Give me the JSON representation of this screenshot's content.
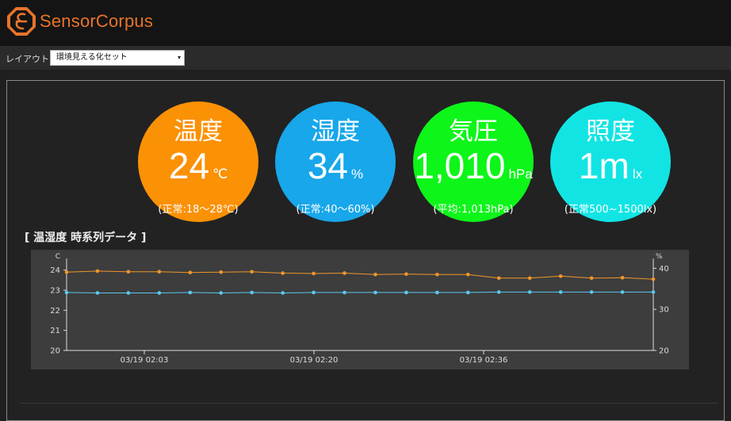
{
  "app": {
    "title": "SensorCorpus",
    "logo_icon": "sensorcorpus-logo-icon"
  },
  "layout": {
    "label": "レイアウト",
    "selected": "環境見える化セット",
    "caret": "▾"
  },
  "gauges": [
    {
      "label": "温度",
      "value": "24",
      "unit": "℃",
      "sub": "(正常:18〜28℃)",
      "color": "#fb9105"
    },
    {
      "label": "湿度",
      "value": "34",
      "unit": "%",
      "sub": "(正常:40〜60%)",
      "color": "#17a7ea"
    },
    {
      "label": "気圧",
      "value": "1,010",
      "unit": "hPa",
      "sub": "(平均:1,013hPa)",
      "color": "#0ef51a"
    },
    {
      "label": "照度",
      "value": "1m",
      "unit": "lx",
      "sub": "(正常500~1500lx)",
      "color": "#12e4e4"
    }
  ],
  "section": {
    "title": "[ 温湿度 時系列データ ]"
  },
  "chart_data": {
    "type": "line",
    "x_tick_labels": [
      "03/19 02:03",
      "03/19 02:20",
      "03/19 02:36"
    ],
    "left_axis": {
      "unit": "C",
      "ticks": [
        "20",
        "21",
        "22",
        "23",
        "24"
      ],
      "range": [
        20,
        24.5
      ]
    },
    "right_axis": {
      "unit": "%",
      "ticks": [
        "20",
        "30",
        "40"
      ],
      "range": [
        20,
        42
      ]
    },
    "series": [
      {
        "axis": "left",
        "color": "#f0962a",
        "values": [
          23.9,
          23.95,
          23.92,
          23.92,
          23.88,
          23.9,
          23.92,
          23.85,
          23.83,
          23.85,
          23.78,
          23.8,
          23.78,
          23.78,
          23.6,
          23.6,
          23.7,
          23.6,
          23.62,
          23.55
        ]
      },
      {
        "axis": "right",
        "color": "#5bc8ef",
        "values": [
          34.1,
          34.0,
          34.0,
          34.0,
          34.1,
          34.0,
          34.1,
          34.0,
          34.1,
          34.1,
          34.1,
          34.1,
          34.1,
          34.1,
          34.2,
          34.2,
          34.2,
          34.2,
          34.2,
          34.2
        ]
      }
    ]
  }
}
